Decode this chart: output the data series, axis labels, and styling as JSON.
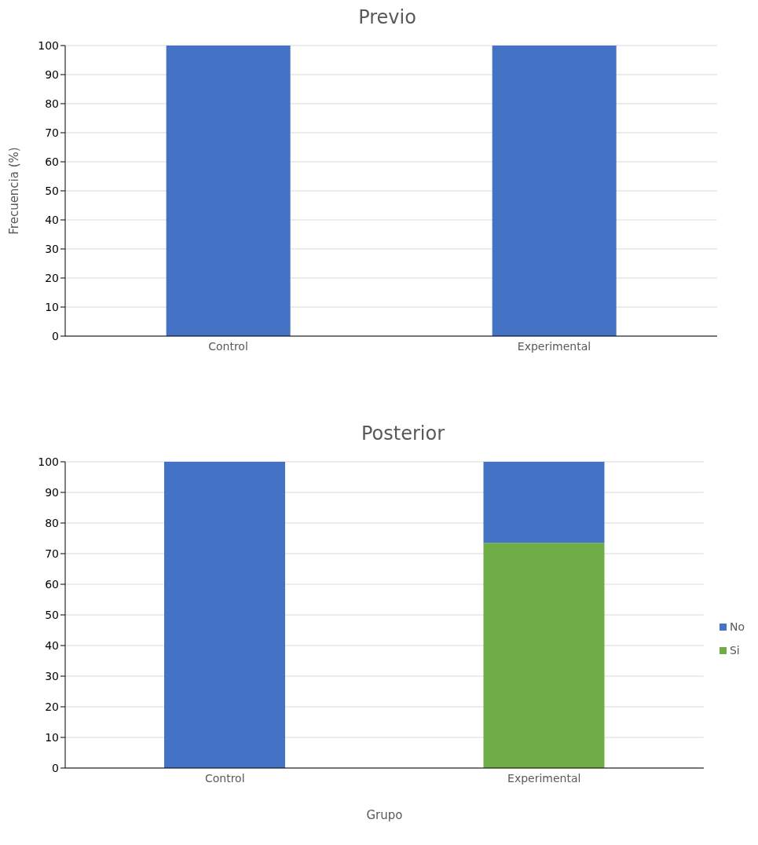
{
  "chart_data": [
    {
      "type": "bar",
      "title": "Previo",
      "ylabel": "Frecuencia (%)",
      "categories": [
        "Control",
        "Experimental"
      ],
      "series": [
        {
          "color": "#4472c4",
          "values": [
            100,
            100
          ]
        }
      ],
      "ylim": [
        0,
        100
      ],
      "yticks": [
        0,
        10,
        20,
        30,
        40,
        50,
        60,
        70,
        80,
        90,
        100
      ],
      "grid": "y",
      "legend": false
    },
    {
      "type": "bar",
      "title": "Posterior",
      "xlabel": "Grupo",
      "categories": [
        "Control",
        "Experimental"
      ],
      "stacked": true,
      "series": [
        {
          "name": "Si",
          "color": "#70ad47",
          "values": [
            0,
            73.5
          ]
        },
        {
          "name": "No",
          "color": "#4472c4",
          "values": [
            100,
            26.5
          ]
        }
      ],
      "ylim": [
        0,
        100
      ],
      "yticks": [
        0,
        10,
        20,
        30,
        40,
        50,
        60,
        70,
        80,
        90,
        100
      ],
      "grid": "y",
      "legend": "right"
    }
  ]
}
